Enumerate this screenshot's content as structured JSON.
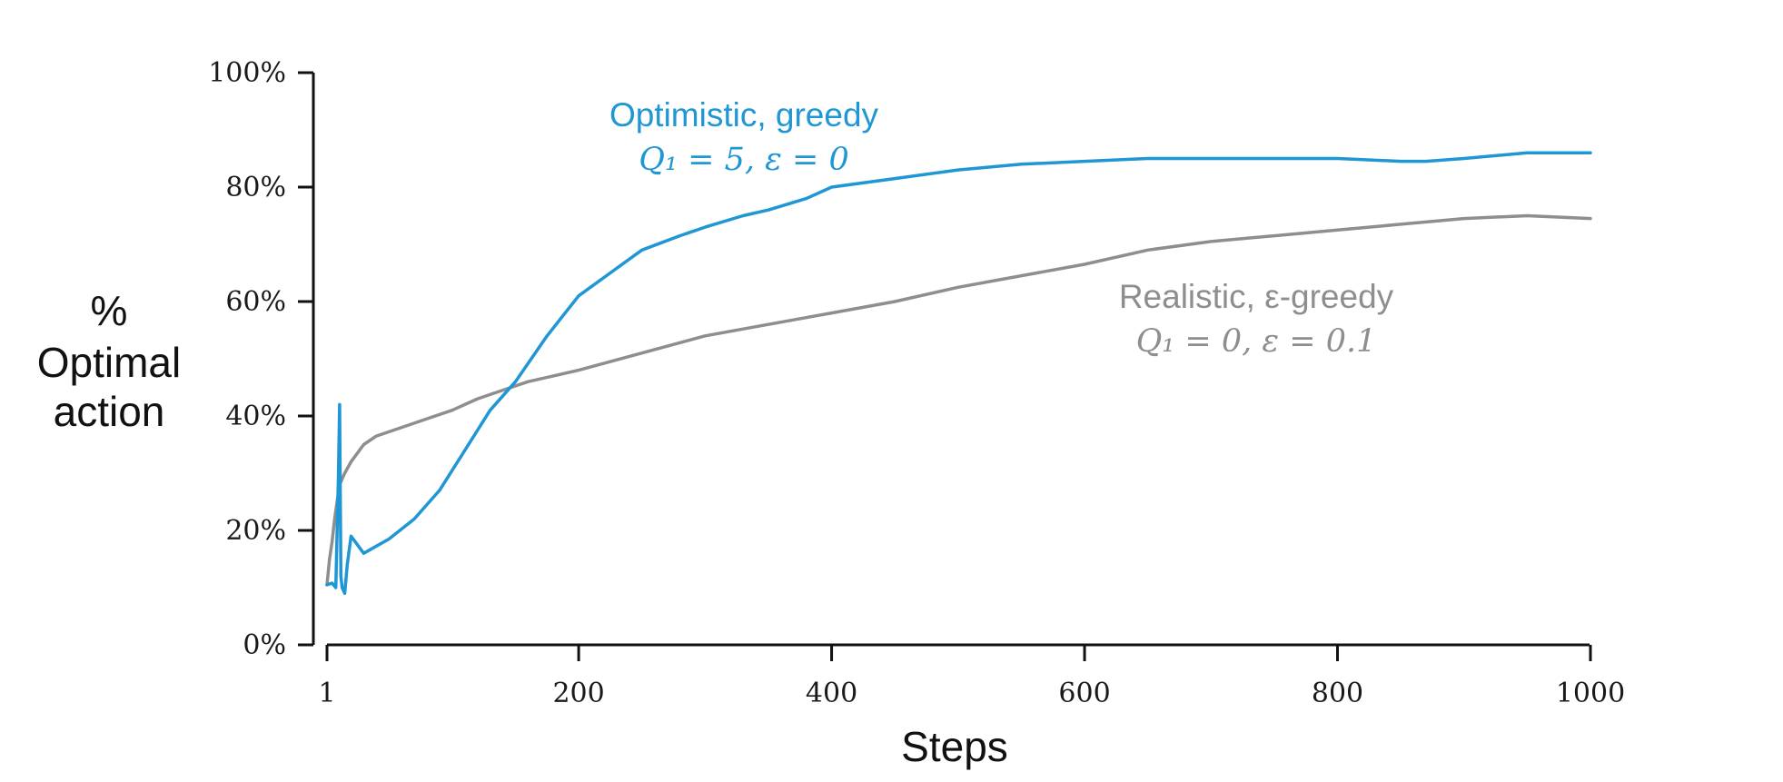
{
  "chart_data": {
    "type": "line",
    "xlabel": "Steps",
    "ylabel_lines": [
      "%",
      "Optimal",
      "action"
    ],
    "xlim": [
      1,
      1000
    ],
    "ylim": [
      0,
      100
    ],
    "x_ticks": [
      1,
      200,
      400,
      600,
      800,
      1000
    ],
    "x_tick_labels": [
      "1",
      "200",
      "400",
      "600",
      "800",
      "1000"
    ],
    "y_ticks": [
      0,
      20,
      40,
      60,
      80,
      100
    ],
    "y_tick_labels": [
      "0%",
      "20%",
      "40%",
      "60%",
      "80%",
      "100%"
    ],
    "grid": false,
    "legend": "none (inline annotations)",
    "series": [
      {
        "name": "Optimistic, greedy",
        "color": "#1f97d4",
        "x": [
          1,
          5,
          8,
          10,
          11,
          12,
          13,
          15,
          17,
          20,
          30,
          50,
          70,
          90,
          110,
          130,
          150,
          175,
          200,
          225,
          250,
          280,
          300,
          330,
          350,
          380,
          400,
          450,
          500,
          550,
          600,
          650,
          700,
          750,
          800,
          850,
          870,
          900,
          950,
          1000
        ],
        "y": [
          10.5,
          10.8,
          10,
          29,
          42,
          12,
          10,
          9,
          14,
          19,
          16,
          18.5,
          22,
          27,
          34,
          41,
          46,
          54,
          61,
          65,
          69,
          71.5,
          73,
          75,
          76,
          78,
          80,
          81.5,
          83,
          84,
          84.5,
          85,
          85,
          85,
          85,
          84.5,
          84.5,
          85,
          86,
          86
        ]
      },
      {
        "name": "Realistic, ε-greedy",
        "color": "#8e8e90",
        "x": [
          1,
          3,
          5,
          7,
          9,
          11,
          15,
          20,
          30,
          40,
          60,
          80,
          100,
          120,
          140,
          160,
          180,
          200,
          250,
          300,
          350,
          400,
          450,
          500,
          550,
          600,
          650,
          700,
          750,
          800,
          850,
          900,
          950,
          1000
        ],
        "y": [
          10.5,
          15,
          18,
          22,
          25,
          28,
          30,
          32,
          35,
          36.5,
          38,
          39.5,
          41,
          43,
          44.5,
          46,
          47,
          48,
          51,
          54,
          56,
          58,
          60,
          62.5,
          64.5,
          66.5,
          69,
          70.5,
          71.5,
          72.5,
          73.5,
          74.5,
          75,
          74.5
        ]
      }
    ],
    "annotations": [
      {
        "title": "Optimistic, greedy",
        "formula": "Q₁ = 5,  ε = 0",
        "color": "#1f97d4"
      },
      {
        "title": "Realistic, ε-greedy",
        "formula": "Q₁ = 0,  ε = 0.1",
        "color": "#8e8e90"
      }
    ]
  }
}
